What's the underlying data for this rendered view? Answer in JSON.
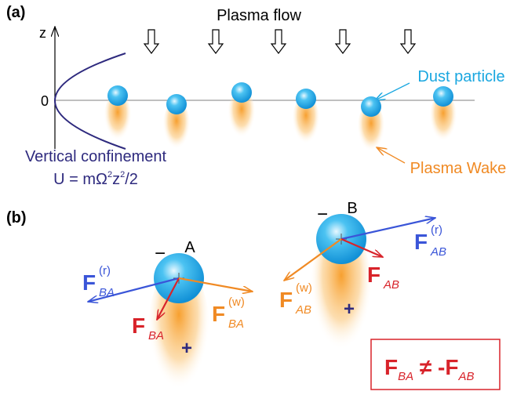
{
  "panel_a": {
    "label": "(a)",
    "axis_label": "z",
    "origin_label": "0",
    "flow_label": "Plasma flow",
    "dust_label": "Dust particle",
    "wake_label": "Plasma Wake",
    "confinement_label": "Vertical confinement",
    "formula": [
      "U = mΩ",
      "2",
      "z",
      "2",
      "/2"
    ]
  },
  "panel_b": {
    "label": "(b)",
    "particle_a": {
      "name": "A",
      "charge": "−",
      "wake_charge": "+"
    },
    "particle_b": {
      "name": "B",
      "charge": "−",
      "wake_charge": "+"
    },
    "forces": [
      {
        "symbol": "F",
        "sup": "(r)",
        "sub": "BA"
      },
      {
        "symbol": "F",
        "sub": "BA"
      },
      {
        "symbol": "F",
        "sup": "(w)",
        "sub": "BA"
      },
      {
        "symbol": "F",
        "sup": "(r)",
        "sub": "AB"
      },
      {
        "symbol": "F",
        "sub": "AB"
      },
      {
        "symbol": "F",
        "sup": "(w)",
        "sub": "AB"
      }
    ],
    "equation": {
      "left": "F",
      "left_sub": "BA",
      "middle": " ≠ -F",
      "right_sub": "AB"
    }
  }
}
